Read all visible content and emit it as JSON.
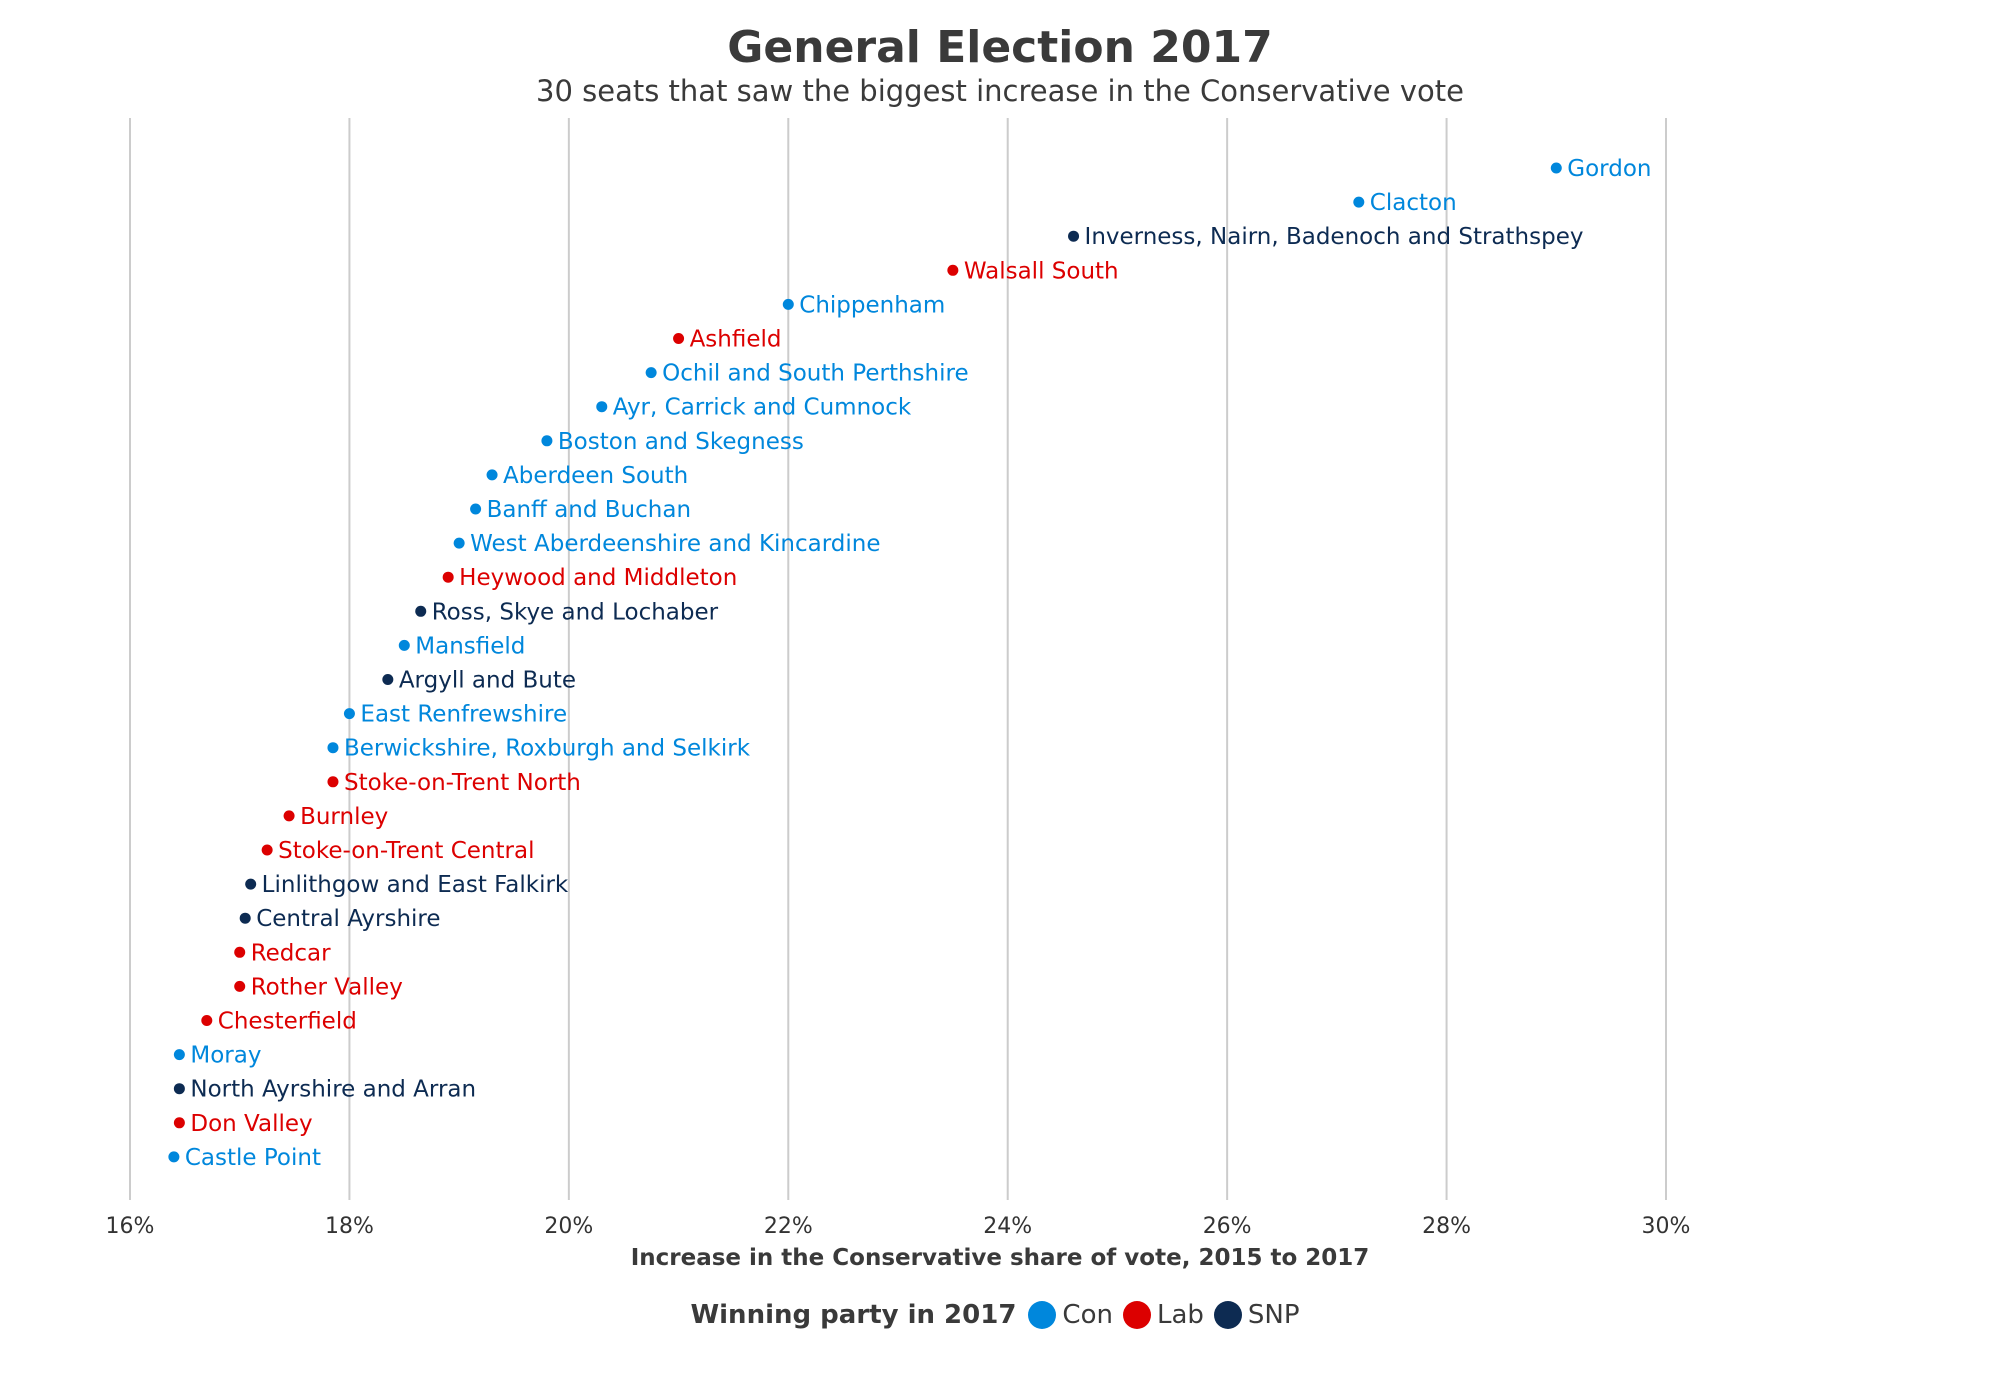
{
  "chart_data": {
    "type": "scatter",
    "title": "General Election 2017",
    "subtitle": "30 seats that saw the biggest increase in the Conservative vote",
    "xlabel": "Increase in the Conservative share of vote, 2015 to 2017",
    "xlim": [
      16,
      30
    ],
    "xticks": [
      "16%",
      "18%",
      "20%",
      "22%",
      "24%",
      "26%",
      "28%",
      "30%"
    ],
    "grid": "vertical",
    "legend": {
      "title": "Winning party in 2017",
      "placement": "bottom",
      "entries": [
        {
          "label": "Con",
          "color": "#0087DC"
        },
        {
          "label": "Lab",
          "color": "#DC0000"
        },
        {
          "label": "SNP",
          "color": "#0D2B52"
        }
      ]
    },
    "points": [
      {
        "seat": "Gordon",
        "value": 29.0,
        "party": "Con"
      },
      {
        "seat": "Clacton",
        "value": 27.2,
        "party": "Con"
      },
      {
        "seat": "Inverness, Nairn, Badenoch and Strathspey",
        "value": 24.6,
        "party": "SNP"
      },
      {
        "seat": "Walsall South",
        "value": 23.5,
        "party": "Lab"
      },
      {
        "seat": "Chippenham",
        "value": 22.0,
        "party": "Con"
      },
      {
        "seat": "Ashfield",
        "value": 21.0,
        "party": "Lab"
      },
      {
        "seat": "Ochil and South Perthshire",
        "value": 20.75,
        "party": "Con"
      },
      {
        "seat": "Ayr, Carrick and Cumnock",
        "value": 20.3,
        "party": "Con"
      },
      {
        "seat": "Boston and Skegness",
        "value": 19.8,
        "party": "Con"
      },
      {
        "seat": "Aberdeen South",
        "value": 19.3,
        "party": "Con"
      },
      {
        "seat": "Banff and Buchan",
        "value": 19.15,
        "party": "Con"
      },
      {
        "seat": "West Aberdeenshire and Kincardine",
        "value": 19.0,
        "party": "Con"
      },
      {
        "seat": "Heywood and Middleton",
        "value": 18.9,
        "party": "Lab"
      },
      {
        "seat": "Ross, Skye and Lochaber",
        "value": 18.65,
        "party": "SNP"
      },
      {
        "seat": "Mansfield",
        "value": 18.5,
        "party": "Con"
      },
      {
        "seat": "Argyll and Bute",
        "value": 18.35,
        "party": "SNP"
      },
      {
        "seat": "East Renfrewshire",
        "value": 18.0,
        "party": "Con"
      },
      {
        "seat": "Berwickshire, Roxburgh and Selkirk",
        "value": 17.85,
        "party": "Con"
      },
      {
        "seat": "Stoke-on-Trent North",
        "value": 17.85,
        "party": "Lab"
      },
      {
        "seat": "Burnley",
        "value": 17.45,
        "party": "Lab"
      },
      {
        "seat": "Stoke-on-Trent Central",
        "value": 17.25,
        "party": "Lab"
      },
      {
        "seat": "Linlithgow and East Falkirk",
        "value": 17.1,
        "party": "SNP"
      },
      {
        "seat": "Central Ayrshire",
        "value": 17.05,
        "party": "SNP"
      },
      {
        "seat": "Redcar",
        "value": 17.0,
        "party": "Lab"
      },
      {
        "seat": "Rother Valley",
        "value": 17.0,
        "party": "Lab"
      },
      {
        "seat": "Chesterfield",
        "value": 16.7,
        "party": "Lab"
      },
      {
        "seat": "Moray",
        "value": 16.45,
        "party": "Con"
      },
      {
        "seat": "North Ayrshire and Arran",
        "value": 16.45,
        "party": "SNP"
      },
      {
        "seat": "Don Valley",
        "value": 16.45,
        "party": "Lab"
      },
      {
        "seat": "Castle Point",
        "value": 16.4,
        "party": "Con"
      }
    ]
  }
}
